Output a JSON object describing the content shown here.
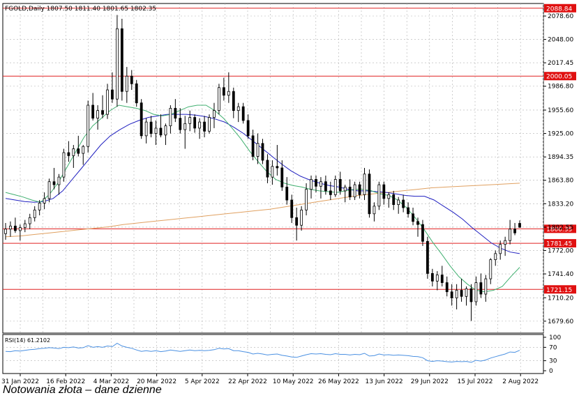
{
  "chart_data": {
    "type": "candlestick",
    "symbol_header": "FGOLD,Daily  1807.50 1811.40 1801.65 1802.35",
    "ohlc_last": {
      "open": 1807.5,
      "high": 1811.4,
      "low": 1801.65,
      "close": 1802.35
    },
    "x_tick_labels": [
      "31 Jan 2022",
      "16 Feb 2022",
      "4 Mar 2022",
      "20 Mar 2022",
      "5 Apr 2022",
      "22 Apr 2022",
      "10 May 2022",
      "26 May 2022",
      "13 Jun 2022",
      "29 Jun 2022",
      "15 Jul 2022",
      "2 Aug 2022"
    ],
    "y_tick_labels": [
      "2078.60",
      "2048.00",
      "2017.45",
      "1986.80",
      "1955.60",
      "1925.00",
      "1894.35",
      "1863.80",
      "1833.20",
      "1802.55",
      "1772.00",
      "1741.40",
      "1710.20",
      "1679.60"
    ],
    "ylim": [
      1664,
      2095
    ],
    "levels": [
      {
        "value": 2088.84,
        "label": "2088.84"
      },
      {
        "value": 2000.05,
        "label": "2000.05"
      },
      {
        "value": 1800.35,
        "label": "1800.35"
      },
      {
        "value": 1781.45,
        "label": "1781.45"
      },
      {
        "value": 1721.15,
        "label": "1721.15"
      }
    ],
    "candles": [
      [
        1794,
        1808,
        1786,
        1800
      ],
      [
        1800,
        1810,
        1790,
        1804
      ],
      [
        1804,
        1815,
        1795,
        1798
      ],
      [
        1798,
        1806,
        1785,
        1802
      ],
      [
        1802,
        1812,
        1796,
        1807
      ],
      [
        1807,
        1820,
        1800,
        1815
      ],
      [
        1815,
        1830,
        1810,
        1825
      ],
      [
        1825,
        1838,
        1818,
        1834
      ],
      [
        1834,
        1848,
        1826,
        1840
      ],
      [
        1840,
        1866,
        1835,
        1862
      ],
      [
        1862,
        1880,
        1852,
        1858
      ],
      [
        1858,
        1872,
        1845,
        1868
      ],
      [
        1868,
        1905,
        1862,
        1900
      ],
      [
        1900,
        1915,
        1888,
        1896
      ],
      [
        1896,
        1910,
        1880,
        1905
      ],
      [
        1905,
        1922,
        1895,
        1899
      ],
      [
        1899,
        1910,
        1884,
        1908
      ],
      [
        1908,
        1968,
        1900,
        1962
      ],
      [
        1962,
        1978,
        1942,
        1945
      ],
      [
        1945,
        1962,
        1930,
        1955
      ],
      [
        1955,
        1975,
        1945,
        1950
      ],
      [
        1950,
        1990,
        1944,
        1982
      ],
      [
        1982,
        2005,
        1965,
        1970
      ],
      [
        1970,
        2080,
        1960,
        2062
      ],
      [
        2062,
        2075,
        1968,
        1980
      ],
      [
        1980,
        2012,
        1965,
        2000
      ],
      [
        2000,
        2008,
        1982,
        1990
      ],
      [
        1990,
        1995,
        1960,
        1965
      ],
      [
        1965,
        1970,
        1918,
        1922
      ],
      [
        1922,
        1945,
        1912,
        1940
      ],
      [
        1940,
        1948,
        1920,
        1925
      ],
      [
        1925,
        1942,
        1910,
        1932
      ],
      [
        1932,
        1950,
        1920,
        1923
      ],
      [
        1923,
        1938,
        1910,
        1935
      ],
      [
        1935,
        1962,
        1925,
        1958
      ],
      [
        1958,
        1970,
        1940,
        1945
      ],
      [
        1945,
        1958,
        1925,
        1930
      ],
      [
        1930,
        1948,
        1905,
        1938
      ],
      [
        1938,
        1955,
        1928,
        1946
      ],
      [
        1946,
        1950,
        1926,
        1932
      ],
      [
        1932,
        1945,
        1918,
        1940
      ],
      [
        1940,
        1948,
        1920,
        1928
      ],
      [
        1928,
        1950,
        1925,
        1946
      ],
      [
        1946,
        1965,
        1932,
        1955
      ],
      [
        1955,
        1990,
        1950,
        1985
      ],
      [
        1985,
        1998,
        1968,
        1975
      ],
      [
        1975,
        2005,
        1965,
        1980
      ],
      [
        1980,
        1985,
        1945,
        1955
      ],
      [
        1955,
        1965,
        1940,
        1960
      ],
      [
        1960,
        1965,
        1938,
        1942
      ],
      [
        1942,
        1950,
        1918,
        1922
      ],
      [
        1922,
        1930,
        1890,
        1895
      ],
      [
        1895,
        1925,
        1885,
        1912
      ],
      [
        1912,
        1918,
        1885,
        1890
      ],
      [
        1890,
        1898,
        1860,
        1868
      ],
      [
        1868,
        1890,
        1858,
        1882
      ],
      [
        1882,
        1910,
        1870,
        1880
      ],
      [
        1880,
        1890,
        1850,
        1855
      ],
      [
        1855,
        1868,
        1832,
        1838
      ],
      [
        1838,
        1845,
        1808,
        1815
      ],
      [
        1815,
        1828,
        1785,
        1805
      ],
      [
        1805,
        1830,
        1798,
        1825
      ],
      [
        1825,
        1860,
        1818,
        1852
      ],
      [
        1852,
        1870,
        1840,
        1865
      ],
      [
        1865,
        1870,
        1848,
        1856
      ],
      [
        1856,
        1868,
        1840,
        1862
      ],
      [
        1862,
        1870,
        1845,
        1850
      ],
      [
        1850,
        1862,
        1838,
        1845
      ],
      [
        1845,
        1870,
        1842,
        1865
      ],
      [
        1865,
        1875,
        1845,
        1850
      ],
      [
        1850,
        1858,
        1835,
        1855
      ],
      [
        1855,
        1865,
        1838,
        1842
      ],
      [
        1842,
        1862,
        1838,
        1858
      ],
      [
        1858,
        1862,
        1840,
        1845
      ],
      [
        1845,
        1880,
        1838,
        1872
      ],
      [
        1872,
        1878,
        1815,
        1820
      ],
      [
        1820,
        1835,
        1810,
        1830
      ],
      [
        1830,
        1862,
        1825,
        1858
      ],
      [
        1858,
        1862,
        1832,
        1840
      ],
      [
        1840,
        1848,
        1828,
        1845
      ],
      [
        1845,
        1850,
        1825,
        1832
      ],
      [
        1832,
        1842,
        1820,
        1838
      ],
      [
        1838,
        1845,
        1822,
        1828
      ],
      [
        1828,
        1835,
        1815,
        1820
      ],
      [
        1820,
        1828,
        1805,
        1810
      ],
      [
        1810,
        1815,
        1790,
        1806
      ],
      [
        1806,
        1812,
        1778,
        1784
      ],
      [
        1784,
        1790,
        1735,
        1742
      ],
      [
        1742,
        1748,
        1725,
        1732
      ],
      [
        1732,
        1745,
        1720,
        1740
      ],
      [
        1740,
        1752,
        1725,
        1730
      ],
      [
        1730,
        1738,
        1712,
        1718
      ],
      [
        1718,
        1728,
        1700,
        1710
      ],
      [
        1710,
        1728,
        1695,
        1720
      ],
      [
        1720,
        1735,
        1705,
        1712
      ],
      [
        1712,
        1725,
        1700,
        1722
      ],
      [
        1722,
        1728,
        1680,
        1705
      ],
      [
        1705,
        1738,
        1700,
        1730
      ],
      [
        1730,
        1742,
        1710,
        1715
      ],
      [
        1715,
        1740,
        1705,
        1735
      ],
      [
        1735,
        1762,
        1728,
        1760
      ],
      [
        1760,
        1772,
        1752,
        1768
      ],
      [
        1768,
        1785,
        1760,
        1780
      ],
      [
        1780,
        1790,
        1765,
        1785
      ],
      [
        1785,
        1812,
        1780,
        1800
      ],
      [
        1800,
        1808,
        1792,
        1795
      ],
      [
        1807.5,
        1811.4,
        1801.65,
        1802.35
      ]
    ],
    "ma_slow_label": "",
    "ma_mid_label": "",
    "ma_fast_label": "",
    "ma_slow": [
      1790,
      1791,
      1793,
      1795,
      1797,
      1799,
      1801,
      1803,
      1806,
      1808,
      1810,
      1812,
      1814,
      1816,
      1818,
      1820,
      1822,
      1824,
      1826,
      1829,
      1832,
      1835,
      1838,
      1841,
      1844,
      1846,
      1848,
      1850,
      1852,
      1854,
      1855,
      1856,
      1857,
      1858,
      1859,
      1860
    ],
    "ma_mid": [
      1840,
      1838,
      1836,
      1835,
      1836,
      1840,
      1850,
      1865,
      1880,
      1895,
      1910,
      1922,
      1930,
      1937,
      1942,
      1946,
      1948,
      1950,
      1950,
      1950,
      1949,
      1947,
      1944,
      1940,
      1933,
      1925,
      1915,
      1905,
      1895,
      1885,
      1876,
      1869,
      1864,
      1860,
      1857,
      1855,
      1852,
      1850,
      1850,
      1849,
      1848,
      1846,
      1844,
      1843,
      1843,
      1838,
      1830,
      1822,
      1813,
      1802,
      1792,
      1782,
      1775,
      1770,
      1768
    ],
    "ma_fast": [
      1848,
      1845,
      1842,
      1838,
      1835,
      1845,
      1860,
      1880,
      1900,
      1920,
      1935,
      1945,
      1955,
      1962,
      1960,
      1958,
      1955,
      1950,
      1948,
      1950,
      1955,
      1960,
      1962,
      1962,
      1955,
      1945,
      1932,
      1918,
      1902,
      1888,
      1875,
      1865,
      1860,
      1857,
      1855,
      1852,
      1850,
      1849,
      1848,
      1850,
      1852,
      1852,
      1850,
      1846,
      1844,
      1838,
      1828,
      1815,
      1800,
      1783,
      1768,
      1752,
      1738,
      1728,
      1720,
      1718,
      1720,
      1725,
      1738,
      1750
    ],
    "rsi": {
      "label": "RSI(14) 61.2102",
      "ylim": [
        0,
        100
      ],
      "levels": [
        30,
        70
      ],
      "tick_labels": [
        "100",
        "70",
        "30",
        "0"
      ],
      "values": [
        58,
        57,
        60,
        59,
        61,
        63,
        64,
        66,
        67,
        69,
        68,
        66,
        70,
        69,
        71,
        68,
        69,
        75,
        70,
        72,
        70,
        74,
        72,
        82,
        74,
        70,
        67,
        62,
        58,
        60,
        58,
        60,
        57,
        59,
        62,
        60,
        58,
        60,
        62,
        60,
        61,
        60,
        61,
        63,
        67,
        65,
        66,
        60,
        60,
        57,
        55,
        50,
        52,
        50,
        47,
        49,
        50,
        46,
        44,
        41,
        40,
        44,
        48,
        51,
        50,
        51,
        49,
        48,
        51,
        49,
        49,
        47,
        49,
        48,
        52,
        44,
        45,
        50,
        47,
        48,
        46,
        47,
        46,
        45,
        43,
        42,
        39,
        30,
        28,
        30,
        29,
        27,
        26,
        28,
        27,
        28,
        25,
        31,
        29,
        32,
        38,
        42,
        46,
        50,
        56,
        55,
        61
      ]
    },
    "caption": "Notowania złota – dane dzienne"
  }
}
